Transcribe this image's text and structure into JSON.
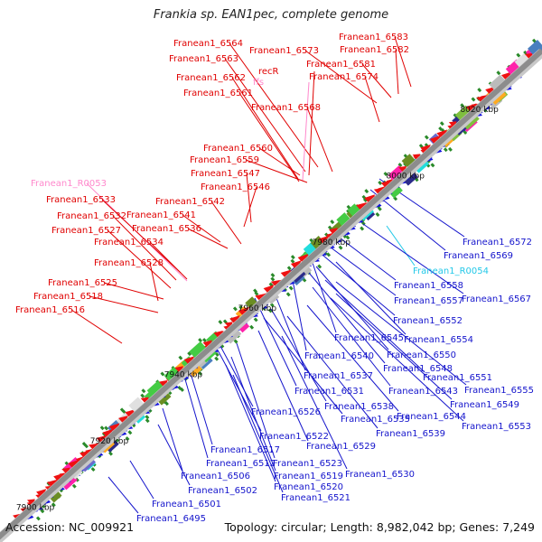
{
  "title": "Frankia sp. EAN1pec, complete genome",
  "accession_text": "Accession: NC_009921",
  "summary_text": "Topology: circular; Length: 8,982,042 bp; Genes: 7,249",
  "colors": {
    "forward_label": "#e00000",
    "reverse_label": "#1414cc",
    "rna_forward_label": "#ff88cc",
    "rna_reverse_label": "#22c8e8",
    "backbone": "#8c8c8c",
    "tick": "#2a8a2a",
    "forward_arrow": "#ee1111",
    "reverse_arrow": "#1111dd"
  },
  "scale_labels": [
    "7900 kbp",
    "7920 kbp",
    "7940 kbp",
    "7960 kbp",
    "7980 kbp",
    "8000 kbp",
    "8020 kbp"
  ],
  "forward_genes": [
    {
      "label": "Franean1_6583",
      "color": "red"
    },
    {
      "label": "Franean1_6564",
      "color": "red"
    },
    {
      "label": "Franean1_6573",
      "color": "red"
    },
    {
      "label": "Franean1_6582",
      "color": "red"
    },
    {
      "label": "Franean1_6563",
      "color": "red"
    },
    {
      "label": "Franean1_6581",
      "color": "red"
    },
    {
      "label": "recR",
      "color": "red"
    },
    {
      "label": "Franean1_6562",
      "color": "red"
    },
    {
      "label": "ffs",
      "color": "pink"
    },
    {
      "label": "Franean1_6574",
      "color": "red"
    },
    {
      "label": "Franean1_6561",
      "color": "red"
    },
    {
      "label": "Franean1_6568",
      "color": "red"
    },
    {
      "label": "Franean1_6560",
      "color": "red"
    },
    {
      "label": "Franean1_6559",
      "color": "red"
    },
    {
      "label": "Franean1_6547",
      "color": "red"
    },
    {
      "label": "Franean1_R0053",
      "color": "pink"
    },
    {
      "label": "Franean1_6546",
      "color": "red"
    },
    {
      "label": "Franean1_6533",
      "color": "red"
    },
    {
      "label": "Franean1_6542",
      "color": "red"
    },
    {
      "label": "Franean1_6532",
      "color": "red"
    },
    {
      "label": "Franean1_6541",
      "color": "red"
    },
    {
      "label": "Franean1_6527",
      "color": "red"
    },
    {
      "label": "Franean1_6536",
      "color": "red"
    },
    {
      "label": "Franean1_6534",
      "color": "red"
    },
    {
      "label": "Franean1_6528",
      "color": "red"
    },
    {
      "label": "Franean1_6525",
      "color": "red"
    },
    {
      "label": "Franean1_6518",
      "color": "red"
    },
    {
      "label": "Franean1_6516",
      "color": "red"
    }
  ],
  "reverse_genes": [
    {
      "label": "Franean1_6572",
      "color": "blue"
    },
    {
      "label": "Franean1_6569",
      "color": "blue"
    },
    {
      "label": "Franean1_R0054",
      "color": "cyan"
    },
    {
      "label": "Franean1_6558",
      "color": "blue"
    },
    {
      "label": "Franean1_6567",
      "color": "blue"
    },
    {
      "label": "Franean1_6557",
      "color": "blue"
    },
    {
      "label": "Franean1_6552",
      "color": "blue"
    },
    {
      "label": "Franean1_6545",
      "color": "blue"
    },
    {
      "label": "Franean1_6554",
      "color": "blue"
    },
    {
      "label": "Franean1_6540",
      "color": "blue"
    },
    {
      "label": "Franean1_6550",
      "color": "blue"
    },
    {
      "label": "Franean1_6548",
      "color": "blue"
    },
    {
      "label": "Franean1_6537",
      "color": "blue"
    },
    {
      "label": "Franean1_6551",
      "color": "blue"
    },
    {
      "label": "Franean1_6531",
      "color": "blue"
    },
    {
      "label": "Franean1_6543",
      "color": "blue"
    },
    {
      "label": "Franean1_6555",
      "color": "blue"
    },
    {
      "label": "Franean1_6538",
      "color": "blue"
    },
    {
      "label": "Franean1_6549",
      "color": "blue"
    },
    {
      "label": "Franean1_6526",
      "color": "blue"
    },
    {
      "label": "Franean1_6535",
      "color": "blue"
    },
    {
      "label": "Franean1_6544",
      "color": "blue"
    },
    {
      "label": "Franean1_6553",
      "color": "blue"
    },
    {
      "label": "Franean1_6539",
      "color": "blue"
    },
    {
      "label": "Franean1_6522",
      "color": "blue"
    },
    {
      "label": "Franean1_6529",
      "color": "blue"
    },
    {
      "label": "Franean1_6517",
      "color": "blue"
    },
    {
      "label": "Franean1_6512",
      "color": "blue"
    },
    {
      "label": "Franean1_6523",
      "color": "blue"
    },
    {
      "label": "Franean1_6506",
      "color": "blue"
    },
    {
      "label": "Franean1_6519",
      "color": "blue"
    },
    {
      "label": "Franean1_6530",
      "color": "blue"
    },
    {
      "label": "Franean1_6502",
      "color": "blue"
    },
    {
      "label": "Franean1_6520",
      "color": "blue"
    },
    {
      "label": "Franean1_6521",
      "color": "blue"
    },
    {
      "label": "Franean1_6501",
      "color": "blue"
    },
    {
      "label": "Franean1_6495",
      "color": "blue"
    }
  ]
}
